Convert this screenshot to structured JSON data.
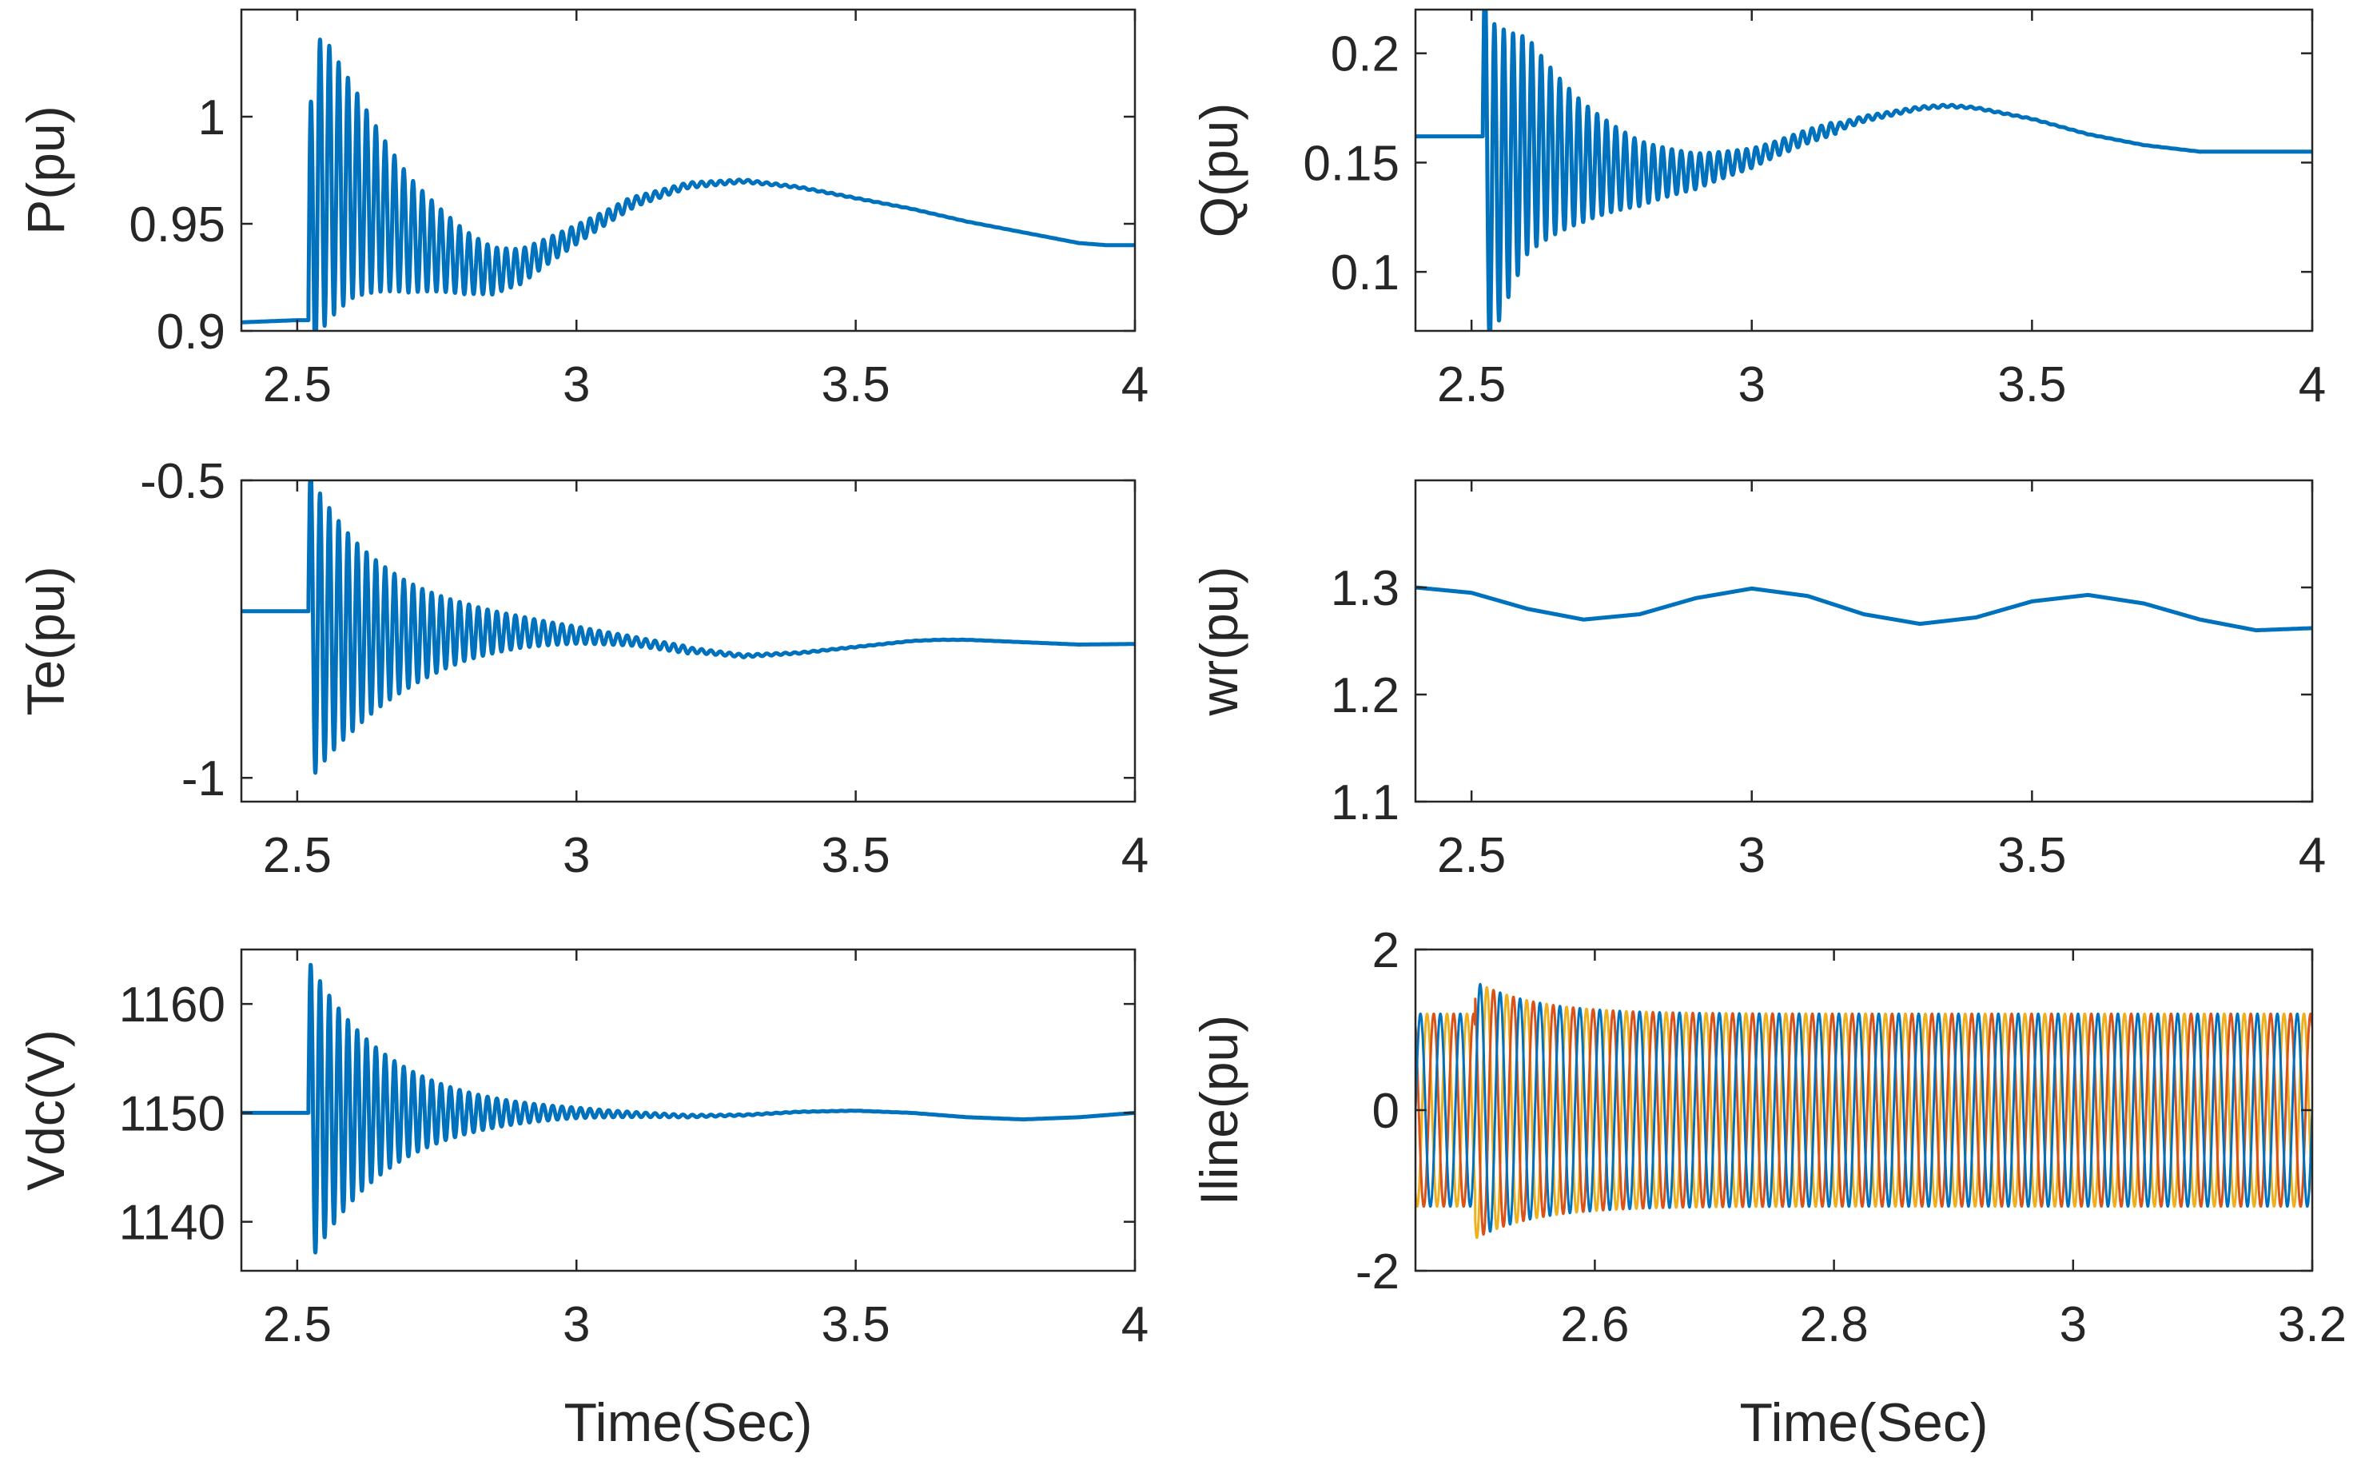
{
  "chart_data": [
    {
      "id": "p",
      "type": "line",
      "ylabel": "P(pu)",
      "xlabel": "",
      "xlim": [
        2.4,
        4.0
      ],
      "ylim": [
        0.9,
        1.05
      ],
      "xticks": [
        2.5,
        3,
        3.5,
        4
      ],
      "xtick_labels": [
        "2.5",
        "3",
        "3.5",
        "4"
      ],
      "yticks": [
        0.9,
        0.95,
        1
      ],
      "ytick_labels": [
        "0.9",
        "0.95",
        "1"
      ],
      "grid": false,
      "series": [
        {
          "color": "#0072BD",
          "x": [
            2.4,
            2.5,
            2.52,
            2.53,
            2.55,
            2.6,
            2.7,
            2.8,
            2.85,
            2.9,
            3.0,
            3.1,
            3.2,
            3.3,
            3.4,
            3.5,
            3.6,
            3.7,
            3.8,
            3.9,
            3.95,
            4.0
          ],
          "y": [
            0.904,
            0.905,
            0.905,
            0.96,
            0.97,
            0.965,
            0.945,
            0.932,
            0.928,
            0.93,
            0.945,
            0.96,
            0.968,
            0.97,
            0.967,
            0.962,
            0.957,
            0.951,
            0.946,
            0.941,
            0.94,
            0.94
          ],
          "oscillation": {
            "start": 2.52,
            "freq_hz": 60,
            "amp0": 0.08,
            "decay": 6,
            "floor_amp": 0.007,
            "floor_until": 3.1
          }
        }
      ]
    },
    {
      "id": "q",
      "type": "line",
      "ylabel": "Q(pu)",
      "xlabel": "",
      "xlim": [
        2.4,
        4.0
      ],
      "ylim": [
        0.073,
        0.22
      ],
      "xticks": [
        2.5,
        3,
        3.5,
        4
      ],
      "xtick_labels": [
        "2.5",
        "3",
        "3.5",
        "4"
      ],
      "yticks": [
        0.1,
        0.15,
        0.2
      ],
      "ytick_labels": [
        "0.1",
        "0.15",
        "0.2"
      ],
      "grid": false,
      "series": [
        {
          "color": "#0072BD",
          "x": [
            2.4,
            2.52,
            2.53,
            2.6,
            2.7,
            2.8,
            2.9,
            3.0,
            3.1,
            3.2,
            3.3,
            3.35,
            3.4,
            3.5,
            3.6,
            3.7,
            3.8,
            3.9,
            4.0
          ],
          "y": [
            0.162,
            0.162,
            0.14,
            0.158,
            0.15,
            0.145,
            0.146,
            0.152,
            0.162,
            0.17,
            0.175,
            0.176,
            0.175,
            0.17,
            0.163,
            0.158,
            0.155,
            0.155,
            0.155
          ],
          "oscillation": {
            "start": 2.52,
            "freq_hz": 60,
            "amp0": 0.08,
            "decay": 6,
            "floor_amp": 0.007,
            "floor_until": 3.15
          }
        }
      ]
    },
    {
      "id": "te",
      "type": "line",
      "ylabel": "Te(pu)",
      "xlabel": "",
      "xlim": [
        2.4,
        4.0
      ],
      "ylim": [
        -1.04,
        -0.5
      ],
      "xticks": [
        2.5,
        3,
        3.5,
        4
      ],
      "xtick_labels": [
        "2.5",
        "3",
        "3.5",
        "4"
      ],
      "yticks": [
        -1,
        -0.5
      ],
      "ytick_labels": [
        "-1",
        "-0.5"
      ],
      "grid": false,
      "series": [
        {
          "color": "#0072BD",
          "x": [
            2.4,
            2.52,
            2.53,
            2.6,
            2.7,
            2.8,
            2.9,
            3.0,
            3.1,
            3.2,
            3.3,
            3.4,
            3.5,
            3.6,
            3.65,
            3.7,
            3.8,
            3.9,
            4.0
          ],
          "y": [
            -0.72,
            -0.72,
            -0.75,
            -0.76,
            -0.76,
            -0.755,
            -0.755,
            -0.76,
            -0.77,
            -0.785,
            -0.795,
            -0.79,
            -0.78,
            -0.77,
            -0.768,
            -0.768,
            -0.772,
            -0.776,
            -0.775
          ],
          "oscillation": {
            "start": 2.52,
            "freq_hz": 60,
            "amp0": 0.26,
            "decay": 6,
            "floor_amp": 0.015,
            "floor_until": 3.2
          }
        }
      ]
    },
    {
      "id": "wr",
      "type": "line",
      "ylabel": "wr(pu)",
      "xlabel": "",
      "xlim": [
        2.4,
        4.0
      ],
      "ylim": [
        1.1,
        1.4
      ],
      "xticks": [
        2.5,
        3,
        3.5,
        4
      ],
      "xtick_labels": [
        "2.5",
        "3",
        "3.5",
        "4"
      ],
      "yticks": [
        1.1,
        1.2,
        1.3
      ],
      "ytick_labels": [
        "1.1",
        "1.2",
        "1.3"
      ],
      "grid": false,
      "series": [
        {
          "color": "#0072BD",
          "x": [
            2.4,
            2.5,
            2.6,
            2.7,
            2.8,
            2.9,
            3.0,
            3.1,
            3.2,
            3.3,
            3.4,
            3.5,
            3.6,
            3.7,
            3.8,
            3.9,
            4.0
          ],
          "y": [
            1.3,
            1.295,
            1.28,
            1.27,
            1.275,
            1.29,
            1.299,
            1.292,
            1.275,
            1.266,
            1.272,
            1.287,
            1.293,
            1.285,
            1.27,
            1.26,
            1.262
          ]
        }
      ]
    },
    {
      "id": "vdc",
      "type": "line",
      "ylabel": "Vdc(V)",
      "xlabel": "Time(Sec)",
      "xlim": [
        2.4,
        4.0
      ],
      "ylim": [
        1135.5,
        1165
      ],
      "xticks": [
        2.5,
        3,
        3.5,
        4
      ],
      "xtick_labels": [
        "2.5",
        "3",
        "3.5",
        "4"
      ],
      "yticks": [
        1140,
        1150,
        1160
      ],
      "ytick_labels": [
        "1140",
        "1150",
        "1160"
      ],
      "grid": false,
      "series": [
        {
          "color": "#0072BD",
          "x": [
            2.4,
            2.52,
            2.6,
            2.8,
            3.0,
            3.2,
            3.3,
            3.4,
            3.5,
            3.6,
            3.7,
            3.8,
            3.9,
            4.0
          ],
          "y": [
            1150,
            1150,
            1150,
            1150,
            1150,
            1149.7,
            1149.8,
            1150.1,
            1150.2,
            1150.0,
            1149.6,
            1149.4,
            1149.6,
            1150.0
          ],
          "oscillation": {
            "start": 2.52,
            "freq_hz": 60,
            "amp0": 14,
            "decay": 7,
            "floor_amp": 0.5,
            "floor_until": 3.05
          }
        }
      ]
    },
    {
      "id": "iline",
      "type": "line",
      "ylabel": "Iline(pu)",
      "xlabel": "Time(Sec)",
      "xlim": [
        2.45,
        3.2
      ],
      "ylim": [
        -2,
        2
      ],
      "xticks": [
        2.6,
        2.8,
        3,
        3.2
      ],
      "xtick_labels": [
        "2.6",
        "2.8",
        "3",
        "3.2"
      ],
      "yticks": [
        -2,
        0,
        2
      ],
      "ytick_labels": [
        "-2",
        "0",
        "2"
      ],
      "grid": false,
      "series": [
        {
          "color": "#EDB120",
          "sine": {
            "amp": 1.2,
            "freq_hz": 60,
            "phase_deg": 240
          }
        },
        {
          "color": "#D95319",
          "sine": {
            "amp": 1.2,
            "freq_hz": 60,
            "phase_deg": 120
          }
        },
        {
          "color": "#0072BD",
          "sine": {
            "amp": 1.2,
            "freq_hz": 60,
            "phase_deg": 0
          }
        }
      ],
      "disturbance": {
        "start": 2.5,
        "amp": 0.4,
        "decay": 20
      }
    }
  ]
}
